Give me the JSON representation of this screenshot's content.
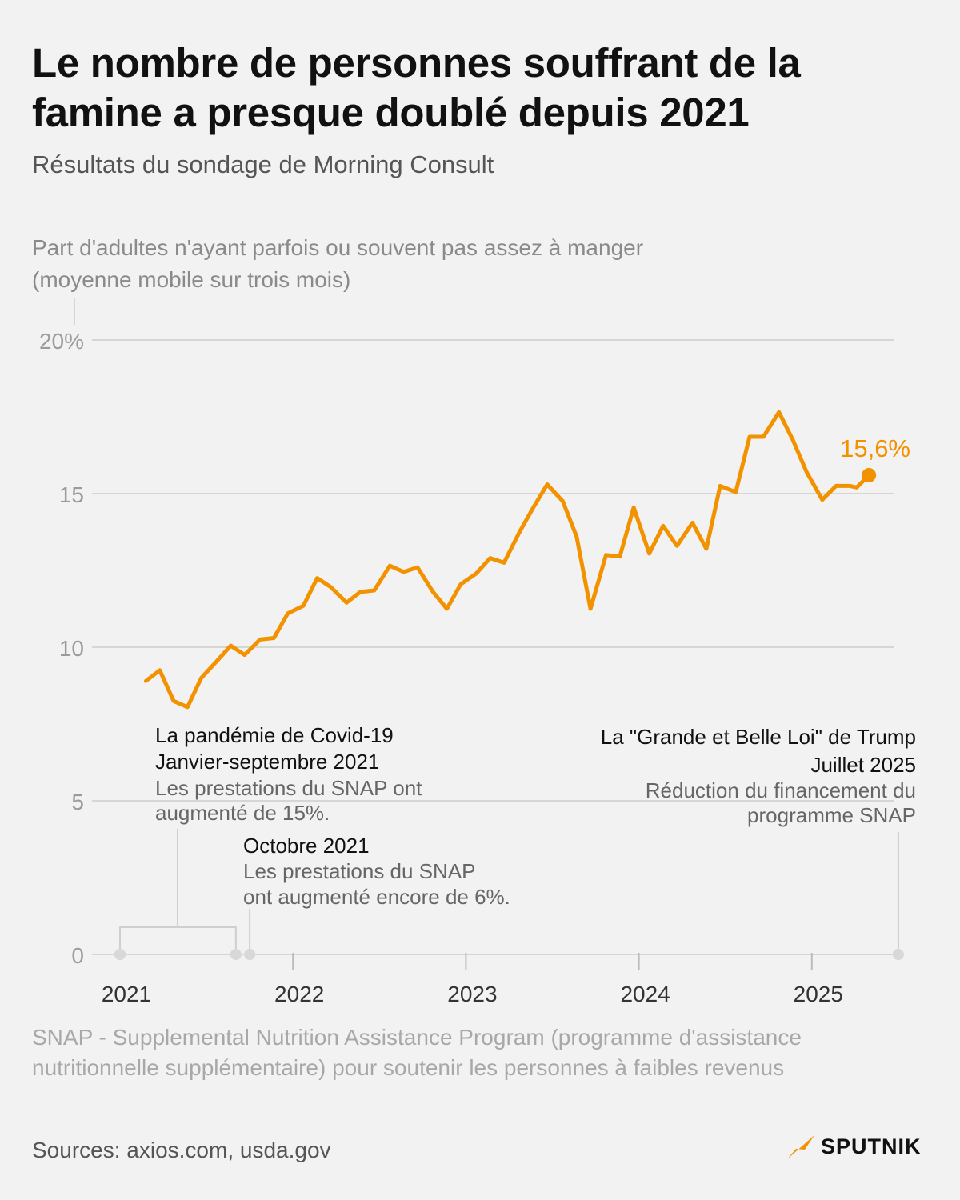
{
  "title": "Le nombre de personnes souffrant de la famine a presque doublé depuis 2021",
  "subtitle": "Résultats du sondage de Morning Consult",
  "colors": {
    "line": "#f39200",
    "grid": "#d6d6d6",
    "axis_text": "#9b9b9b",
    "annotation_line": "#cfcfcf"
  },
  "chart_data": {
    "type": "line",
    "ylabel": [
      "Part d'adultes n'ayant parfois ou souvent pas assez à manger",
      "(moyenne mobile sur trois mois)"
    ],
    "ylim": [
      0,
      20
    ],
    "yticks": [
      0,
      5,
      10,
      15,
      20
    ],
    "ytick_labels": [
      "0",
      "5",
      "10",
      "15",
      "20%"
    ],
    "xlim": [
      2021.0,
      2025.6
    ],
    "xticks": [
      2021,
      2022,
      2023,
      2024,
      2025
    ],
    "xtick_labels": [
      "2021",
      "2022",
      "2023",
      "2024",
      "2025"
    ],
    "series": [
      {
        "name": "Part d'adultes",
        "x": [
          2021.15,
          2021.23,
          2021.31,
          2021.39,
          2021.47,
          2021.56,
          2021.64,
          2021.72,
          2021.81,
          2021.89,
          2021.97,
          2022.06,
          2022.14,
          2022.22,
          2022.31,
          2022.39,
          2022.47,
          2022.56,
          2022.64,
          2022.72,
          2022.81,
          2022.89,
          2022.97,
          2023.06,
          2023.14,
          2023.22,
          2023.31,
          2023.39,
          2023.47,
          2023.56,
          2023.64,
          2023.72,
          2023.81,
          2023.89,
          2023.97,
          2024.06,
          2024.14,
          2024.22,
          2024.31,
          2024.39,
          2024.47,
          2024.56,
          2024.64,
          2024.72,
          2024.81,
          2024.89,
          2024.97,
          2025.06,
          2025.14,
          2025.22,
          2025.26,
          2025.33
        ],
        "y": [
          8.9,
          9.25,
          8.25,
          8.05,
          9.0,
          9.55,
          10.05,
          9.75,
          10.25,
          10.3,
          11.1,
          11.35,
          12.25,
          11.95,
          11.45,
          11.8,
          11.85,
          12.65,
          12.45,
          12.6,
          11.8,
          11.25,
          12.05,
          12.4,
          12.9,
          12.75,
          13.75,
          14.55,
          15.3,
          14.75,
          13.6,
          11.25,
          13.0,
          12.95,
          14.55,
          13.05,
          13.95,
          13.3,
          14.05,
          13.2,
          15.25,
          15.05,
          16.85,
          16.85,
          17.65,
          16.75,
          15.7,
          14.8,
          15.25,
          15.25,
          15.2,
          15.6
        ]
      }
    ],
    "last_value_label": "15,6%",
    "annotations": [
      {
        "title": "La pandémie de Covid-19",
        "subtitle": "Janvier-septembre 2021",
        "text": [
          "Les prestations du SNAP ont",
          "augmenté de 15%."
        ],
        "x_start": 2021.0,
        "x_end": 2021.67
      },
      {
        "title": "Octobre 2021",
        "text": [
          "Les prestations du SNAP",
          "ont augmenté encore de 6%."
        ],
        "x": 2021.75
      },
      {
        "title": "La \"Grande et Belle Loi\" de Trump",
        "subtitle": "Juillet 2025",
        "text": [
          "Réduction du financement du",
          "programme SNAP"
        ],
        "x": 2025.5
      }
    ]
  },
  "footnote": "SNAP - Supplemental Nutrition Assistance Program (programme d'assistance nutritionnelle supplémentaire) pour soutenir les personnes à faibles revenus",
  "sources": "Sources: axios.com, usda.gov",
  "logo": {
    "text": "SPUTNIK",
    "icon": "sputnik-arrow-icon"
  }
}
